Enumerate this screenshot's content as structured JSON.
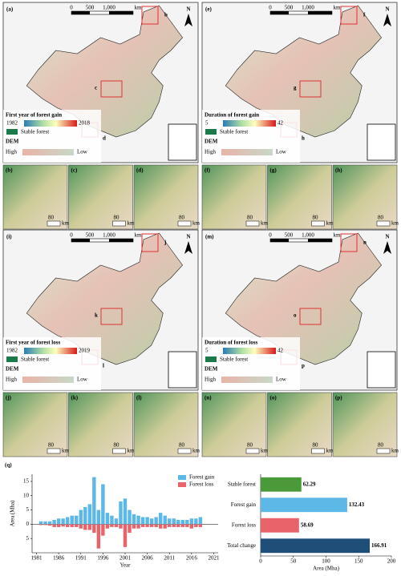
{
  "maps": [
    {
      "label": "(a)",
      "insets": [
        "b",
        "c",
        "d"
      ],
      "scale": [
        "0",
        "500",
        "1,000",
        "km"
      ],
      "north": "N",
      "legend_title": "First year of forest gain",
      "range": [
        "1982",
        "2018"
      ],
      "stable": "Stable forest",
      "dem": "DEM",
      "dem_range": [
        "High",
        "Low"
      ]
    },
    {
      "label": "(e)",
      "insets": [
        "f",
        "g",
        "h"
      ],
      "scale": [
        "0",
        "500",
        "1,000",
        "km"
      ],
      "north": "N",
      "legend_title": "Duration of forest gain",
      "range": [
        "5",
        "42"
      ],
      "stable": "Stable forest",
      "dem": "DEM",
      "dem_range": [
        "High",
        "Low"
      ]
    },
    {
      "label": "(i)",
      "insets": [
        "j",
        "k",
        "l"
      ],
      "scale": [
        "0",
        "500",
        "1,000",
        "km"
      ],
      "north": "N",
      "legend_title": "First year of forest loss",
      "range": [
        "1982",
        "2019"
      ],
      "stable": "Stable forest",
      "dem": "DEM",
      "dem_range": [
        "High",
        "Low"
      ]
    },
    {
      "label": "(m)",
      "insets": [
        "n",
        "o",
        "p"
      ],
      "scale": [
        "0",
        "500",
        "1,000",
        "km"
      ],
      "north": "N",
      "legend_title": "Duration of forest loss",
      "range": [
        "5",
        "42"
      ],
      "stable": "Stable forest",
      "dem": "DEM",
      "dem_range": [
        "High",
        "Low"
      ]
    }
  ],
  "subpanels": [
    {
      "label": "(b)",
      "scale": "80",
      "unit": "km"
    },
    {
      "label": "(c)",
      "scale": "80",
      "unit": "km"
    },
    {
      "label": "(d)",
      "scale": "80",
      "unit": "km"
    },
    {
      "label": "(f)",
      "scale": "80",
      "unit": "km"
    },
    {
      "label": "(g)",
      "scale": "80",
      "unit": "km"
    },
    {
      "label": "(h)",
      "scale": "80",
      "unit": "km"
    },
    {
      "label": "(j)",
      "scale": "80",
      "unit": "km"
    },
    {
      "label": "(k)",
      "scale": "80",
      "unit": "km"
    },
    {
      "label": "(l)",
      "scale": "80",
      "unit": "km"
    },
    {
      "label": "(n)",
      "scale": "80",
      "unit": "km"
    },
    {
      "label": "(o)",
      "scale": "80",
      "unit": "km"
    },
    {
      "label": "(p)",
      "scale": "80",
      "unit": "km"
    }
  ],
  "panel_q": "(q)",
  "chart_data": [
    {
      "type": "bar",
      "x_label": "Year",
      "y_label": "Area (Mha)",
      "x": [
        1982,
        1983,
        1984,
        1985,
        1986,
        1987,
        1988,
        1989,
        1990,
        1991,
        1992,
        1993,
        1994,
        1995,
        1996,
        1997,
        1998,
        1999,
        2000,
        2001,
        2002,
        2003,
        2004,
        2005,
        2006,
        2007,
        2008,
        2009,
        2010,
        2011,
        2012,
        2013,
        2014,
        2015,
        2016,
        2017,
        2018
      ],
      "series": [
        {
          "name": "Forest gain",
          "color": "#5cb8e6",
          "values": [
            1,
            1,
            1,
            1.5,
            2,
            2,
            2.5,
            3,
            3,
            5,
            6,
            7,
            16.5,
            5,
            14,
            4,
            3,
            2,
            8,
            9,
            5,
            3.5,
            3,
            2.5,
            2.5,
            2,
            2.5,
            4,
            3,
            2,
            2,
            1.5,
            1.5,
            1.5,
            2,
            2,
            2.5
          ]
        },
        {
          "name": "Forest loss",
          "color": "#e8646a",
          "values": [
            -0.3,
            -0.3,
            -0.5,
            -1,
            -1,
            -0.8,
            -1,
            -1,
            -1,
            -1.5,
            -2,
            -2,
            -3,
            -8.5,
            -4,
            -1.5,
            -1,
            -1,
            -1.5,
            -8,
            -3,
            -1.5,
            -1.5,
            -1,
            -1,
            -1,
            -1,
            -1.5,
            -1.5,
            -1,
            -1,
            -1,
            -1,
            -1,
            -1.5,
            -1,
            -1
          ]
        }
      ],
      "xlim": [
        1980,
        2022
      ],
      "xticks": [
        1981,
        1986,
        1991,
        1996,
        2001,
        2006,
        2011,
        2016,
        2021
      ],
      "ylim": [
        -10,
        17.5
      ],
      "yticks": [
        {
          "value": -5,
          "label": "5"
        },
        0,
        5,
        10,
        15
      ]
    },
    {
      "type": "hbar",
      "x_label": "Area (Mha)",
      "categories": [
        "Stable forest",
        "Forest gain",
        "Forest loss",
        "Total change"
      ],
      "values": [
        62.29,
        132.43,
        58.69,
        166.91
      ],
      "colors": [
        "#4a9a3a",
        "#5cb8e6",
        "#e8646a",
        "#1f4e79"
      ],
      "xlim": [
        0,
        200
      ],
      "xticks": [
        0,
        50,
        100,
        150,
        200
      ]
    }
  ]
}
